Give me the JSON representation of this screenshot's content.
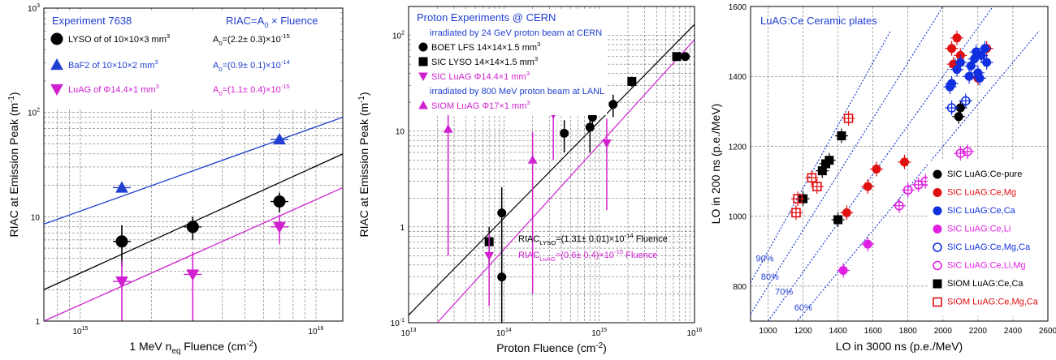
{
  "chart_data": [
    {
      "type": "scatter",
      "title": "Experiment 7638",
      "formula": "RIAC=A0 × Fluence",
      "xlabel": "1 MeV n_eq Fluence (cm^-2)",
      "ylabel": "RIAC at Emission Peak (m^-1)",
      "xscale": "log",
      "yscale": "log",
      "xlim": [
        700000000000000.0,
        1.3e+16
      ],
      "ylim": [
        1,
        1000
      ],
      "xticks": [
        "10^15",
        "10^16"
      ],
      "yticks": [
        "1",
        "10",
        "10^2",
        "10^3"
      ],
      "grid": true,
      "series": [
        {
          "name": "LYSO of of 10×10×3 mm^3",
          "fit": "A0=(2.2± 0.3)×10^-15",
          "color": "#000000",
          "marker": "circle",
          "x": [
            1500000000000000.0,
            3000000000000000.0,
            7000000000000000.0
          ],
          "y": [
            5.8,
            8.0,
            14.0
          ],
          "yerr": [
            2.5,
            2.0,
            3.0
          ],
          "fit_line": [
            [
              700000000000000.0,
              2.0
            ],
            [
              1.3e+16,
              40
            ]
          ]
        },
        {
          "name": "BaF2 of 10×10×2 mm^3",
          "fit": "A0=(0.9± 0.1)×10^-14",
          "color": "#1f3fd0",
          "marker": "triangle-up",
          "x": [
            1500000000000000.0,
            7000000000000000.0
          ],
          "y": [
            19.0,
            55.0
          ],
          "yerr": [
            0,
            0
          ],
          "fit_line": [
            [
              700000000000000.0,
              8.5
            ],
            [
              1.3e+16,
              90
            ]
          ]
        },
        {
          "name": "LuAG of Φ14.4×1 mm^3",
          "fit": "A0=(1.1± 0.4)×10^-15",
          "color": "#d020d0",
          "marker": "triangle-down",
          "x": [
            1500000000000000.0,
            3000000000000000.0,
            7000000000000000.0
          ],
          "y": [
            2.4,
            2.8,
            8.0
          ],
          "yerr": [
            1.4,
            1.8,
            2.5
          ],
          "fit_line": [
            [
              700000000000000.0,
              1.0
            ],
            [
              1.3e+16,
              19
            ]
          ]
        }
      ]
    },
    {
      "type": "scatter",
      "title": "Proton Experiments @ CERN",
      "xlabel": "Proton Fluence (cm^-2)",
      "ylabel": "RIAC at Emission Peak (m^-1)",
      "xscale": "log",
      "yscale": "log",
      "xlim": [
        10000000000000.0,
        1e+16
      ],
      "ylim": [
        0.1,
        200
      ],
      "xticks": [
        "10^13",
        "10^14",
        "10^15",
        "10^16"
      ],
      "yticks": [
        "10^-1",
        "1",
        "10",
        "10^2"
      ],
      "grid": true,
      "notes": [
        "irradiated by 24 GeV proton beam at CERN",
        "irradiated by 800 MeV proton beam at LANL"
      ],
      "fits": [
        "RIAC_LYSO=(1.31± 0.01)×10^-14 Fluence",
        "RIAC_LuAG=(0.6± 0.4)×10^-15 Fluence"
      ],
      "series": [
        {
          "name": "BOET LFS  14×14×1.5 mm^3",
          "color": "#000000",
          "marker": "circle",
          "x": [
            95000000000000.0,
            430000000000000.0,
            800000000000000.0,
            850000000000000.0,
            1400000000000000.0,
            8000000000000000.0
          ],
          "y": [
            1.4,
            9.5,
            11,
            14,
            19,
            60
          ],
          "yerr": [
            1.2,
            3.5,
            5,
            4,
            5,
            4
          ]
        },
        {
          "name": "SIC LYSO  14×14×1.5 mm^3",
          "color": "#000000",
          "marker": "square",
          "x": [
            70000000000000.0,
            2200000000000000.0,
            6500000000000000.0
          ],
          "y": [
            0.7,
            33,
            60
          ],
          "yerr": [
            0.3,
            4,
            3
          ]
        },
        {
          "name": "SIC LuAG   Φ14.4×1 mm^3",
          "color": "#d020d0",
          "marker": "triangle-down",
          "x": [
            70000000000000.0,
            330000000000000.0,
            1200000000000000.0
          ],
          "y": [
            0.5,
            15,
            7.5
          ],
          "yerr": [
            0.35,
            10,
            6
          ]
        },
        {
          "name": "SIOM LuAG   Φ17×1 mm^3",
          "color": "#d020d0",
          "marker": "triangle-up",
          "x": [
            26000000000000.0,
            200000000000000.0
          ],
          "y": [
            10.5,
            5
          ],
          "yerr": [
            10,
            4.8
          ]
        }
      ],
      "extra_points": [
        {
          "name": "",
          "color": "#000000",
          "marker": "circle",
          "x": [
            95000000000000.0
          ],
          "y": [
            0.3
          ],
          "yerr": [
            0.28
          ]
        }
      ],
      "fit_lines": [
        {
          "color": "#000000",
          "points": [
            [
              10000000000000.0,
              0.12
            ],
            [
              1e+16,
              130
            ]
          ]
        },
        {
          "color": "#d020d0",
          "points": [
            [
              20000000000000.0,
              0.1
            ],
            [
              1e+16,
              90
            ]
          ]
        }
      ]
    },
    {
      "type": "scatter",
      "title": "LuAG:Ce Ceramic plates",
      "xlabel": "LO in 3000 ns (p.e./MeV)",
      "ylabel": "LO in 200 ns (p.e./MeV)",
      "xlim": [
        900,
        2600
      ],
      "ylim": [
        700,
        1600
      ],
      "xticks": [
        "1000",
        "1200",
        "1400",
        "1600",
        "1800",
        "2000",
        "2200",
        "2400",
        "2600"
      ],
      "yticks": [
        "800",
        "1000",
        "1200",
        "1400",
        "1600"
      ],
      "grid": true,
      "ratio_lines": [
        {
          "label": "90%",
          "points": [
            [
              900,
              810
            ],
            [
              1700,
              1530
            ]
          ]
        },
        {
          "label": "80%",
          "points": [
            [
              900,
              720
            ],
            [
              2000,
              1600
            ]
          ]
        },
        {
          "label": "70%",
          "points": [
            [
              1000,
              700
            ],
            [
              2300,
              1610
            ]
          ]
        },
        {
          "label": "60%",
          "points": [
            [
              1170,
              702
            ],
            [
              2550,
              1530
            ]
          ]
        }
      ],
      "series": [
        {
          "name": "SIC LuAG:Ce-pure",
          "color": "#000000",
          "marker": "circle",
          "filled": true,
          "x": [
            2090,
            2100
          ],
          "y": [
            1285,
            1310
          ]
        },
        {
          "name": "SIC LuAG:Ce,Mg",
          "color": "#e01010",
          "marker": "circle",
          "filled": true,
          "x": [
            1450,
            1570,
            1620,
            1780,
            2050,
            2060,
            2080,
            2100,
            2200,
            2250
          ],
          "y": [
            1010,
            1085,
            1135,
            1155,
            1480,
            1435,
            1510,
            1460,
            1395,
            1480
          ]
        },
        {
          "name": "SIC LuAG:Ce,Ca",
          "color": "#1030e0",
          "marker": "circle",
          "filled": true,
          "x": [
            2040,
            2050,
            2080,
            2100,
            2150,
            2160,
            2180,
            2190,
            2200,
            2210,
            2220,
            2240,
            2250
          ],
          "y": [
            1370,
            1380,
            1420,
            1440,
            1400,
            1430,
            1450,
            1470,
            1410,
            1395,
            1460,
            1480,
            1440
          ]
        },
        {
          "name": "SIC LuAG:Ce,Li",
          "color": "#e020e0",
          "marker": "circle",
          "filled": true,
          "x": [
            1430,
            1570
          ],
          "y": [
            845,
            920
          ]
        },
        {
          "name": "SIC LuAG:Ce,Mg,Ca",
          "color": "#1030e0",
          "marker": "circle",
          "filled": false,
          "x": [
            2050,
            2130
          ],
          "y": [
            1310,
            1330
          ]
        },
        {
          "name": "SIC LuAG:Ce,Li,Mg",
          "color": "#e020e0",
          "marker": "circle",
          "filled": false,
          "x": [
            1750,
            1800,
            1860,
            1900,
            2100,
            2140
          ],
          "y": [
            1030,
            1075,
            1090,
            1100,
            1180,
            1185
          ]
        },
        {
          "name": "SIOM LuAG:Ce,Ca",
          "color": "#000000",
          "marker": "square",
          "filled": true,
          "x": [
            1200,
            1310,
            1330,
            1350,
            1400,
            1420
          ],
          "y": [
            1050,
            1130,
            1150,
            1160,
            990,
            1230
          ]
        },
        {
          "name": "SIOM LuAG:Ce,Mg,Ca",
          "color": "#e01010",
          "marker": "square",
          "filled": false,
          "x": [
            1160,
            1170,
            1250,
            1280,
            1460
          ],
          "y": [
            1010,
            1050,
            1110,
            1085,
            1280
          ]
        }
      ]
    }
  ]
}
